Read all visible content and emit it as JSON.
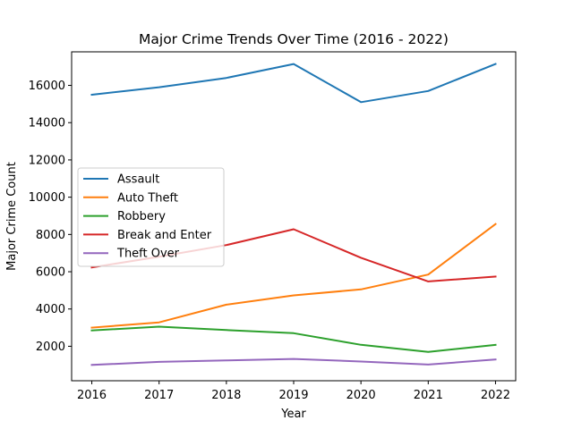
{
  "chart_data": {
    "type": "line",
    "title": "Major Crime Trends Over Time (2016 - 2022)",
    "xlabel": "Year",
    "ylabel": "Major Crime Count",
    "x": [
      2016,
      2017,
      2018,
      2019,
      2020,
      2021,
      2022
    ],
    "xlim": [
      2015.7,
      2022.3
    ],
    "ylim": [
      150,
      17800
    ],
    "yticks": [
      2000,
      4000,
      6000,
      8000,
      10000,
      12000,
      14000,
      16000
    ],
    "grid": false,
    "legend_position": "center-left",
    "series": [
      {
        "name": "Assault",
        "color": "#1f77b4",
        "values": [
          15500,
          15900,
          16400,
          17150,
          15100,
          15700,
          17150
        ]
      },
      {
        "name": "Auto Theft",
        "color": "#ff7f0e",
        "values": [
          3000,
          3280,
          4230,
          4730,
          5050,
          5850,
          8560
        ]
      },
      {
        "name": "Robbery",
        "color": "#2ca02c",
        "values": [
          2850,
          3050,
          2870,
          2700,
          2080,
          1700,
          2080
        ]
      },
      {
        "name": "Break and Enter",
        "color": "#d62728",
        "values": [
          6230,
          6800,
          7430,
          8280,
          6750,
          5480,
          5740
        ]
      },
      {
        "name": "Theft Over",
        "color": "#9467bd",
        "values": [
          1000,
          1160,
          1240,
          1320,
          1180,
          1020,
          1290
        ]
      }
    ]
  }
}
